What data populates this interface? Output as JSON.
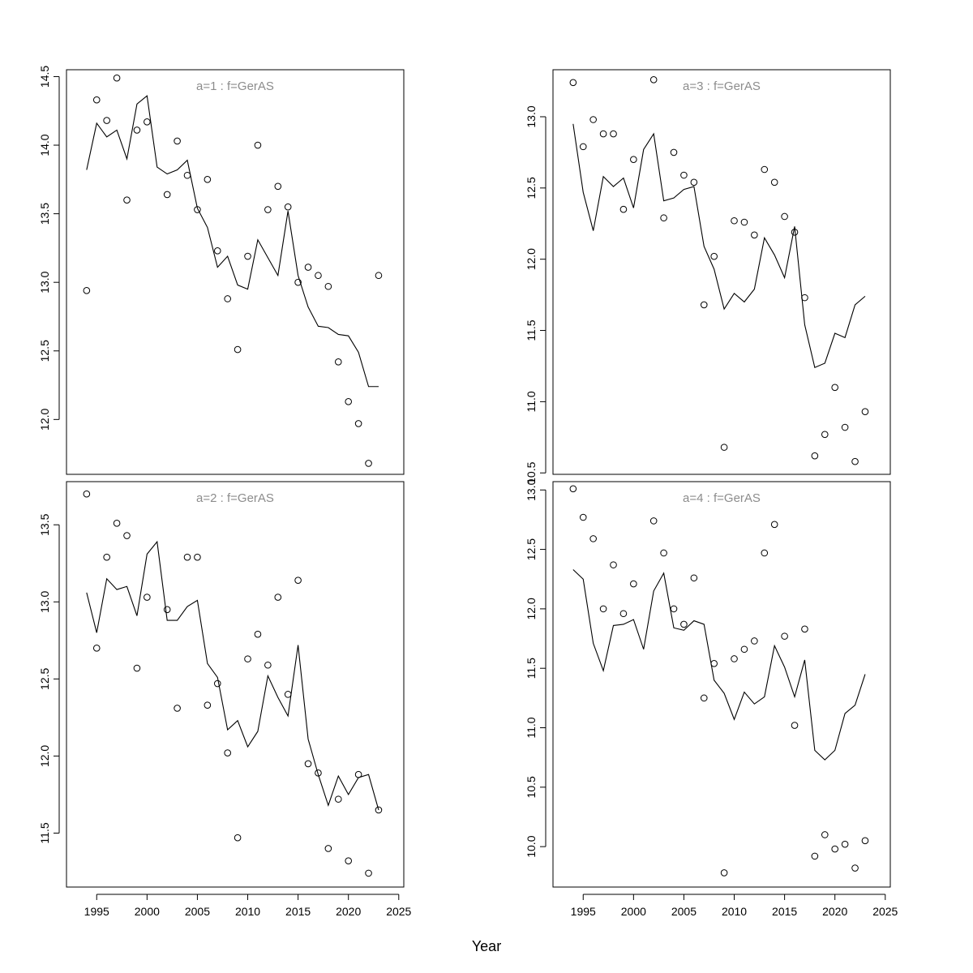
{
  "chart_data": {
    "xlabel": "Year",
    "xlim": [
      1992,
      2025.5
    ],
    "x_ticks": [
      1995,
      2000,
      2005,
      2010,
      2015,
      2020,
      2025
    ],
    "panels": [
      {
        "id": "a1",
        "type": "line",
        "title": "a=1  :  f=GerAS",
        "ylim": [
          11.6,
          14.55
        ],
        "y_ticks": [
          "12.0",
          "12.5",
          "13.0",
          "13.5",
          "14.0",
          "14.5"
        ],
        "fitted": {
          "x": [
            1994,
            1995,
            1996,
            1997,
            1998,
            1999,
            2000,
            2001,
            2002,
            2003,
            2004,
            2005,
            2006,
            2007,
            2008,
            2009,
            2010,
            2011,
            2012,
            2013,
            2014,
            2015,
            2016,
            2017,
            2018,
            2019,
            2020,
            2021,
            2022,
            2023
          ],
          "y": [
            13.82,
            14.16,
            14.06,
            14.11,
            13.9,
            14.3,
            14.36,
            13.84,
            13.79,
            13.82,
            13.89,
            13.54,
            13.4,
            13.11,
            13.19,
            12.98,
            12.95,
            13.31,
            13.18,
            13.05,
            13.52,
            13.05,
            12.82,
            12.68,
            12.67,
            12.62,
            12.61,
            12.49,
            12.24,
            12.24
          ]
        },
        "observed": {
          "x": [
            1994,
            1995,
            1996,
            1997,
            1998,
            1999,
            2000,
            2002,
            2003,
            2004,
            2005,
            2006,
            2007,
            2008,
            2009,
            2010,
            2011,
            2012,
            2013,
            2014,
            2015,
            2016,
            2017,
            2018,
            2019,
            2020,
            2021,
            2022,
            2023
          ],
          "y": [
            12.94,
            14.33,
            14.18,
            14.49,
            13.6,
            14.11,
            14.17,
            13.64,
            14.03,
            13.78,
            13.53,
            13.75,
            13.23,
            12.88,
            12.51,
            13.19,
            14.0,
            13.53,
            13.7,
            13.55,
            13.0,
            13.11,
            13.05,
            12.97,
            12.42,
            12.13,
            11.97,
            11.68,
            13.05
          ]
        }
      },
      {
        "id": "a2",
        "type": "line",
        "title": "a=2  :  f=GerAS",
        "ylim": [
          11.15,
          13.78
        ],
        "y_ticks": [
          "11.5",
          "12.0",
          "12.5",
          "13.0",
          "13.5"
        ],
        "fitted": {
          "x": [
            1994,
            1995,
            1996,
            1997,
            1998,
            1999,
            2000,
            2001,
            2002,
            2003,
            2004,
            2005,
            2006,
            2007,
            2008,
            2009,
            2010,
            2011,
            2012,
            2013,
            2014,
            2015,
            2016,
            2017,
            2018,
            2019,
            2020,
            2021,
            2022,
            2023
          ],
          "y": [
            13.06,
            12.8,
            13.15,
            13.08,
            13.1,
            12.91,
            13.31,
            13.39,
            12.88,
            12.88,
            12.97,
            13.01,
            12.6,
            12.51,
            12.17,
            12.23,
            12.06,
            12.16,
            12.52,
            12.38,
            12.26,
            12.72,
            12.11,
            11.88,
            11.68,
            11.87,
            11.75,
            11.86,
            11.88,
            11.65
          ]
        },
        "observed": {
          "x": [
            1994,
            1995,
            1996,
            1997,
            1998,
            1999,
            2000,
            2002,
            2003,
            2004,
            2005,
            2006,
            2007,
            2008,
            2009,
            2010,
            2011,
            2012,
            2013,
            2014,
            2015,
            2016,
            2017,
            2018,
            2019,
            2020,
            2021,
            2022,
            2023
          ],
          "y": [
            13.7,
            12.7,
            13.29,
            13.51,
            13.43,
            12.57,
            13.03,
            12.95,
            12.31,
            13.29,
            13.29,
            12.33,
            12.47,
            12.02,
            11.47,
            12.63,
            12.79,
            12.59,
            13.03,
            12.4,
            13.14,
            11.95,
            11.89,
            11.4,
            11.72,
            11.32,
            11.88,
            11.24,
            11.65
          ]
        }
      },
      {
        "id": "a3",
        "type": "line",
        "title": "a=3  :  f=GerAS",
        "ylim": [
          10.49,
          13.33
        ],
        "y_ticks": [
          "10.5",
          "11.0",
          "11.5",
          "12.0",
          "12.5",
          "13.0"
        ],
        "fitted": {
          "x": [
            1994,
            1995,
            1996,
            1997,
            1998,
            1999,
            2000,
            2001,
            2002,
            2003,
            2004,
            2005,
            2006,
            2007,
            2008,
            2009,
            2010,
            2011,
            2012,
            2013,
            2014,
            2015,
            2016,
            2017,
            2018,
            2019,
            2020,
            2021,
            2022,
            2023
          ],
          "y": [
            12.95,
            12.47,
            12.2,
            12.58,
            12.51,
            12.57,
            12.36,
            12.77,
            12.88,
            12.41,
            12.43,
            12.49,
            12.51,
            12.09,
            11.93,
            11.65,
            11.76,
            11.7,
            11.79,
            12.15,
            12.03,
            11.87,
            12.23,
            11.54,
            11.24,
            11.27,
            11.48,
            11.45,
            11.68,
            11.74
          ]
        },
        "observed": {
          "x": [
            1994,
            1995,
            1996,
            1997,
            1998,
            1999,
            2000,
            2002,
            2003,
            2004,
            2005,
            2006,
            2007,
            2008,
            2009,
            2010,
            2011,
            2012,
            2013,
            2014,
            2015,
            2016,
            2017,
            2018,
            2019,
            2020,
            2021,
            2022,
            2023
          ],
          "y": [
            13.24,
            12.79,
            12.98,
            12.88,
            12.88,
            12.35,
            12.7,
            13.26,
            12.29,
            12.75,
            12.59,
            12.54,
            11.68,
            12.02,
            10.68,
            12.27,
            12.26,
            12.17,
            12.63,
            12.54,
            12.3,
            12.19,
            11.73,
            10.62,
            10.77,
            11.1,
            10.82,
            10.58,
            10.93
          ]
        }
      },
      {
        "id": "a4",
        "type": "line",
        "title": "a=4  :  f=GerAS",
        "ylim": [
          9.66,
          13.07
        ],
        "y_ticks": [
          "10.0",
          "10.5",
          "11.0",
          "11.5",
          "12.0",
          "12.5",
          "13.0"
        ],
        "fitted": {
          "x": [
            1994,
            1995,
            1996,
            1997,
            1998,
            1999,
            2000,
            2001,
            2002,
            2003,
            2004,
            2005,
            2006,
            2007,
            2008,
            2009,
            2010,
            2011,
            2012,
            2013,
            2014,
            2015,
            2016,
            2017,
            2018,
            2019,
            2020,
            2021,
            2022,
            2023
          ],
          "y": [
            12.33,
            12.25,
            11.71,
            11.48,
            11.86,
            11.87,
            11.91,
            11.66,
            12.15,
            12.3,
            11.84,
            11.82,
            11.9,
            11.87,
            11.4,
            11.29,
            11.07,
            11.3,
            11.2,
            11.26,
            11.69,
            11.51,
            11.26,
            11.57,
            10.81,
            10.73,
            10.81,
            11.12,
            11.19,
            11.45
          ]
        },
        "observed": {
          "x": [
            1994,
            1995,
            1996,
            1997,
            1998,
            1999,
            2000,
            2002,
            2003,
            2004,
            2005,
            2006,
            2007,
            2008,
            2009,
            2010,
            2011,
            2012,
            2013,
            2014,
            2015,
            2016,
            2017,
            2018,
            2019,
            2020,
            2021,
            2022,
            2023
          ],
          "y": [
            13.01,
            12.77,
            12.59,
            12.0,
            12.37,
            11.96,
            12.21,
            12.74,
            12.47,
            12.0,
            11.87,
            12.26,
            11.25,
            11.54,
            9.78,
            11.58,
            11.66,
            11.73,
            12.47,
            12.71,
            11.77,
            11.02,
            11.83,
            9.92,
            10.1,
            9.98,
            10.02,
            9.82,
            10.05
          ]
        }
      }
    ]
  }
}
